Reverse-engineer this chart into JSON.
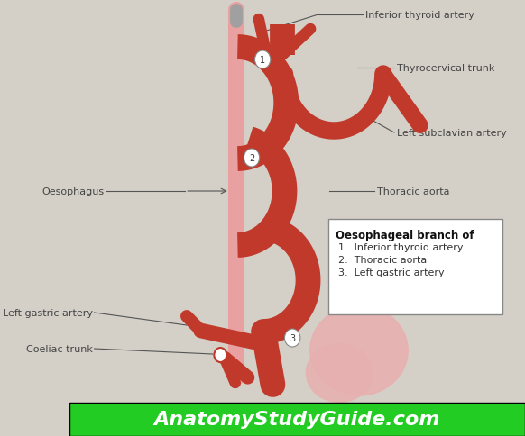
{
  "bg_color": "#d4d0c8",
  "dark_red": "#c0392b",
  "light_pink": "#e8a0a0",
  "stomach_pink": "#e8b0b0",
  "label_color": "#444444",
  "footer_bg": "#22cc22",
  "footer_text": "AnatomyStudyGuide.com",
  "footer_color": "#ffffff",
  "box_title": "Oesophageal branch of",
  "box_items": [
    "1.  Inferior thyroid artery",
    "2.  Thoracic aorta",
    "3.  Left gastric artery"
  ],
  "labels": {
    "inferior_thyroid": "Inferior thyroid artery",
    "thyrocervical": "Thyrocervical trunk",
    "left_subclavian": "Left subclavian artery",
    "oesophagus": "Oesophagus",
    "thoracic_aorta": "Thoracic aorta",
    "left_gastric": "Left gastric artery",
    "coeliac_trunk": "Coeliac trunk"
  }
}
